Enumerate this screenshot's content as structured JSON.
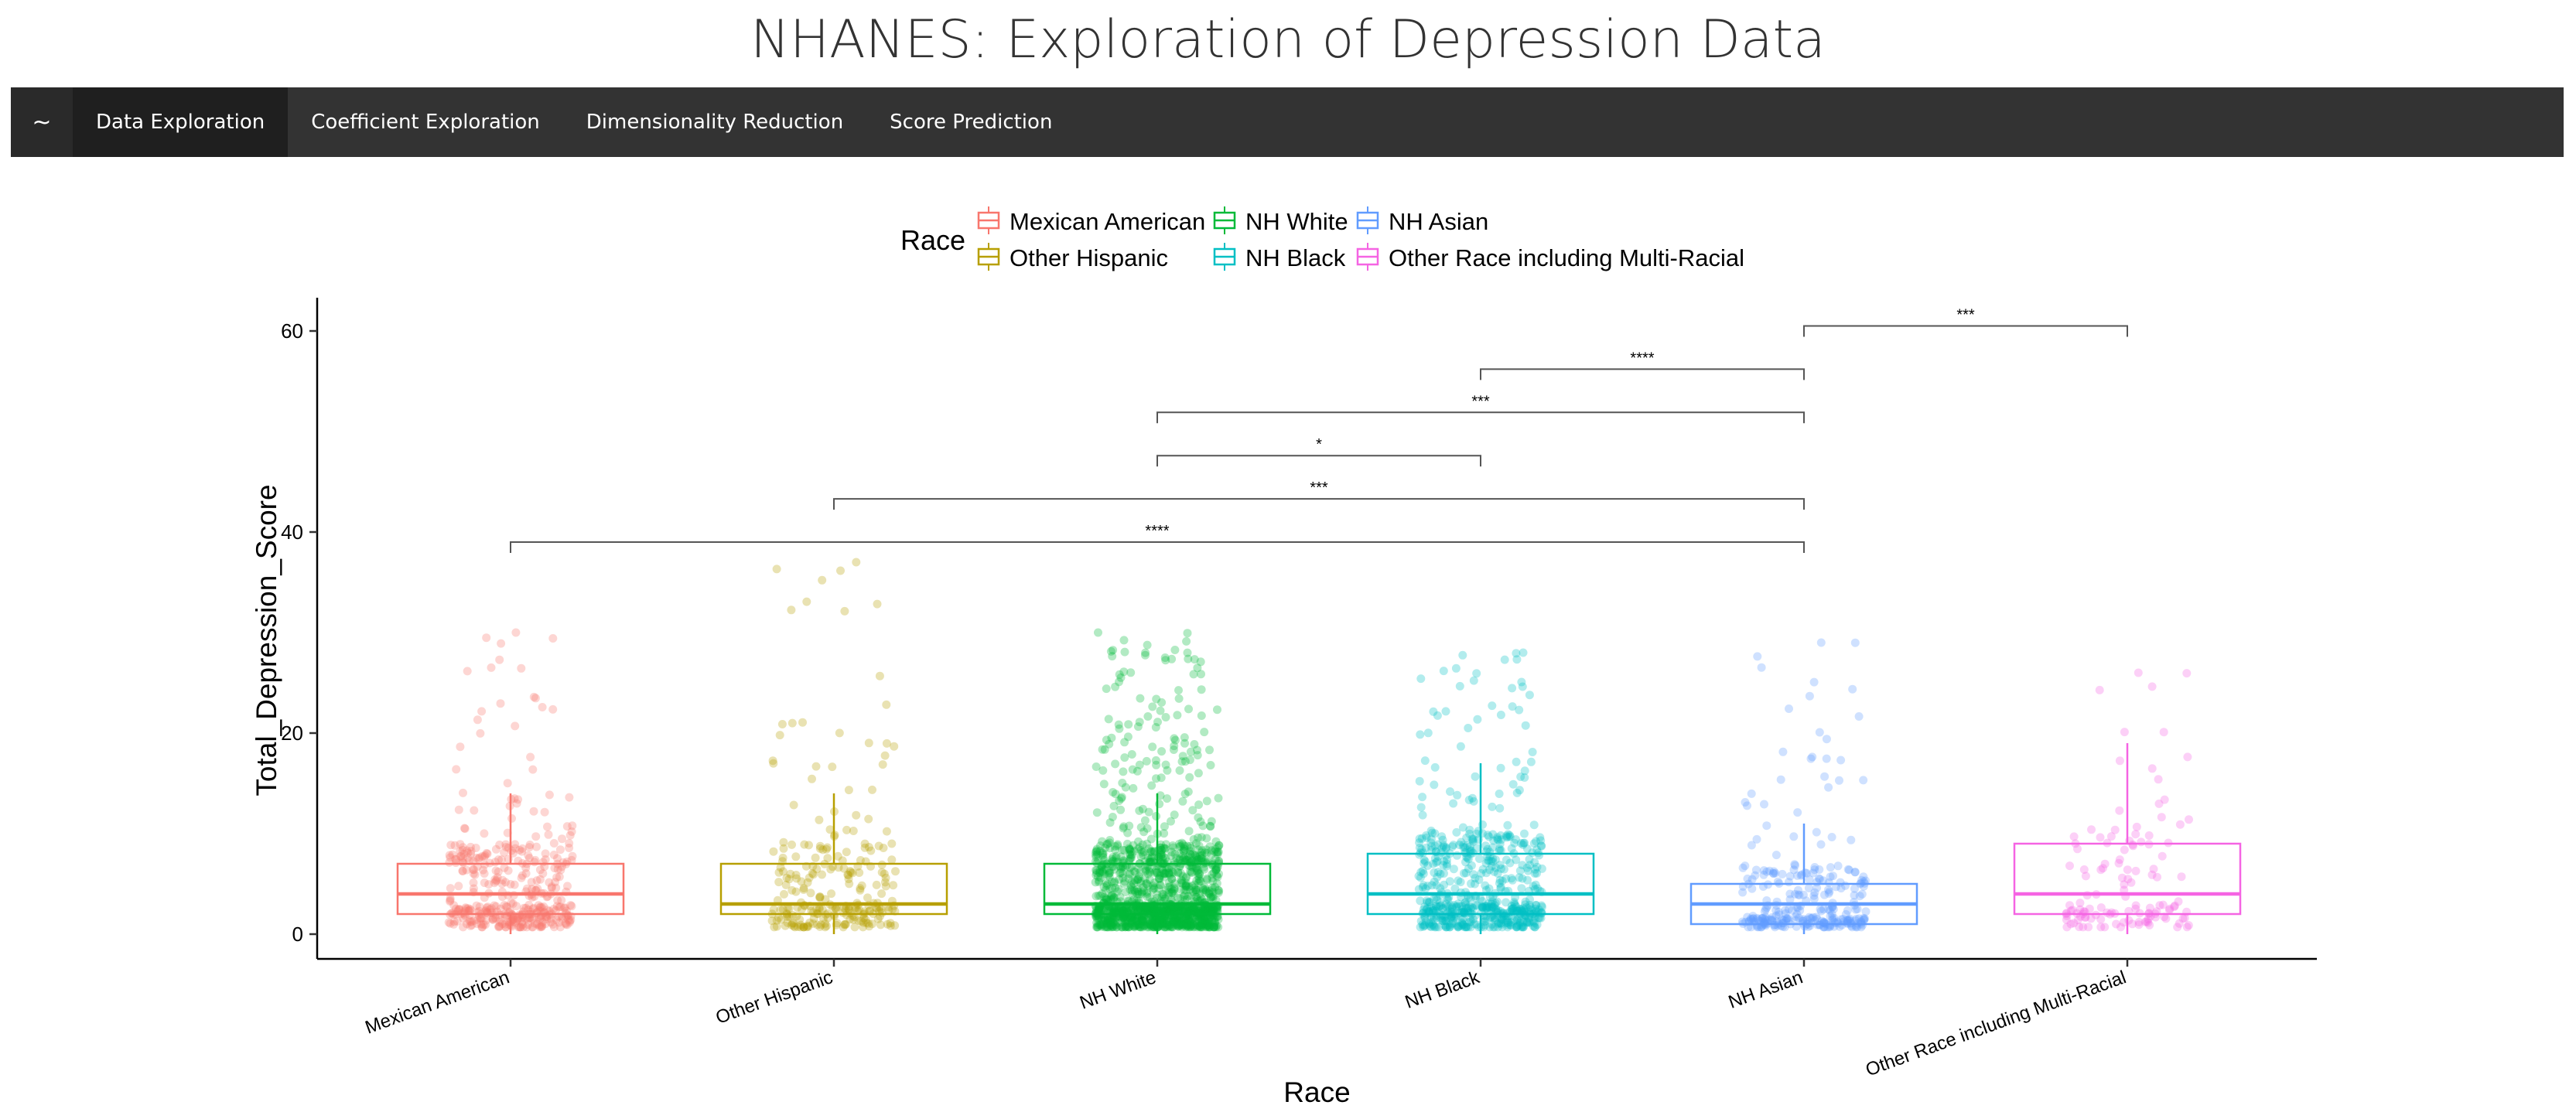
{
  "page": {
    "title": "NHANES: Exploration of Depression Data"
  },
  "nav": {
    "brand": "~",
    "items": [
      {
        "label": "Data Exploration",
        "active": true
      },
      {
        "label": "Coefficient Exploration",
        "active": false
      },
      {
        "label": "Dimensionality Reduction",
        "active": false
      },
      {
        "label": "Score Prediction",
        "active": false
      }
    ]
  },
  "chart_data": {
    "type": "box",
    "xlabel": "Race",
    "ylabel": "Total_Depression_Score",
    "ylim": [
      0,
      63
    ],
    "yticks": [
      0,
      20,
      40,
      60
    ],
    "grid": false,
    "legend": {
      "title": "Race",
      "position": "top"
    },
    "categories": [
      "Mexican American",
      "Other Hispanic",
      "NH White",
      "NH Black",
      "NH Asian",
      "Other Race including Multi-Racial"
    ],
    "colors": [
      "#F8766D",
      "#B79F00",
      "#00BA38",
      "#00BFC4",
      "#619CFF",
      "#F564E3"
    ],
    "boxes": [
      {
        "category": "Mexican American",
        "q1": 2,
        "median": 4,
        "q3": 7,
        "whisker_low": 0,
        "whisker_high": 14
      },
      {
        "category": "Other Hispanic",
        "q1": 2,
        "median": 3,
        "q3": 7,
        "whisker_low": 0,
        "whisker_high": 14
      },
      {
        "category": "NH White",
        "q1": 2,
        "median": 3,
        "q3": 7,
        "whisker_low": 0,
        "whisker_high": 14
      },
      {
        "category": "NH Black",
        "q1": 2,
        "median": 4,
        "q3": 8,
        "whisker_low": 0,
        "whisker_high": 17
      },
      {
        "category": "NH Asian",
        "q1": 1,
        "median": 3,
        "q3": 5,
        "whisker_low": 0,
        "whisker_high": 11
      },
      {
        "category": "Other Race including Multi-Racial",
        "q1": 2,
        "median": 4,
        "q3": 9,
        "whisker_low": 0,
        "whisker_high": 19
      }
    ],
    "jitter_points": [
      {
        "category": "Mexican American",
        "n": 420,
        "max": 30
      },
      {
        "category": "Other Hispanic",
        "n": 260,
        "max": 37
      },
      {
        "category": "NH White",
        "n": 1400,
        "max": 30
      },
      {
        "category": "NH Black",
        "n": 620,
        "max": 28
      },
      {
        "category": "NH Asian",
        "n": 300,
        "max": 29
      },
      {
        "category": "Other Race including Multi-Racial",
        "n": 130,
        "max": 26
      }
    ],
    "significance": [
      {
        "from": "Mexican American",
        "to": "NH Asian",
        "y": 39,
        "label": "****"
      },
      {
        "from": "Other Hispanic",
        "to": "NH Asian",
        "y": 43.3,
        "label": "***"
      },
      {
        "from": "NH White",
        "to": "NH Black",
        "y": 47.6,
        "label": "*"
      },
      {
        "from": "NH White",
        "to": "NH Asian",
        "y": 51.9,
        "label": "***"
      },
      {
        "from": "NH Black",
        "to": "NH Asian",
        "y": 56.2,
        "label": "****"
      },
      {
        "from": "NH Asian",
        "to": "Other Race including Multi-Racial",
        "y": 60.5,
        "label": "***"
      }
    ]
  }
}
